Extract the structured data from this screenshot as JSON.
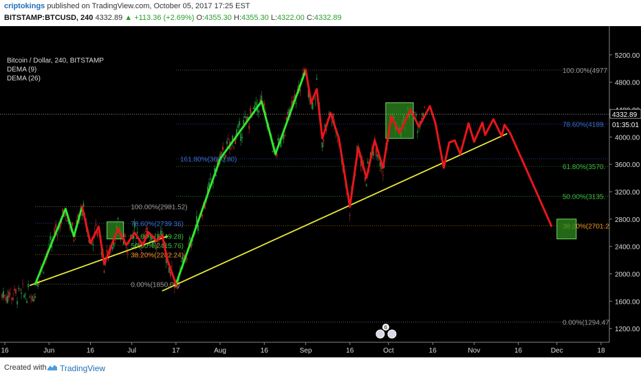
{
  "header": {
    "author": "criptokings",
    "published_text": "published on TradingView.com, October 05, 2017 17:25 EST",
    "symbol": "BITSTAMP:BTCUSD, 240",
    "last": "4332.89",
    "change": "▲ +113.36 (+2.69%)",
    "open_label": "O:",
    "open": "4355.30",
    "high_label": "H:",
    "high": "4355.30",
    "low_label": "L:",
    "low": "4322.00",
    "close_label": "C:",
    "close": "4332.89"
  },
  "legend": {
    "title": "Bitcoin / Dollar, 240, BITSTAMP",
    "ind1": "DEMA (9)",
    "ind2": "DEMA (26)"
  },
  "footer": {
    "created": "Created with",
    "brand": "TradingView"
  },
  "colors": {
    "background": "#000000",
    "green_wave": "#2ee82e",
    "red_wave": "#e8161b",
    "trendline": "#e8e83a",
    "fib_blue": "#3b6fd6",
    "fib_green": "#3fbf3f",
    "fib_orange": "#e8932a",
    "fib_gray": "#9a9a9a",
    "box_fill": "#2e8b1e"
  },
  "chart_data": {
    "type": "line",
    "title": "Bitcoin / Dollar, 240, BITSTAMP",
    "ylim": [
      1000,
      5600
    ],
    "y_ticks": [
      1200,
      1600,
      2000,
      2400,
      2800,
      3200,
      3600,
      4000,
      4400,
      4800,
      5200
    ],
    "y_tick_labels": [
      "1200.00",
      "1600.00",
      "2000.00",
      "2400.00",
      "2800.00",
      "3200.00",
      "3600.00",
      "4000.00",
      "4400.00",
      "4800.00",
      "5200.00"
    ],
    "x_tick_labels": [
      "16",
      "Jun",
      "16",
      "Jul",
      "17",
      "Aug",
      "16",
      "Sep",
      "16",
      "Oct",
      "16",
      "Nov",
      "16",
      "Dec",
      "18"
    ],
    "x_tick_days": [
      0,
      16,
      31,
      46,
      62,
      78,
      94,
      109,
      125,
      139,
      155,
      170,
      186,
      200,
      216
    ],
    "x_range_days": [
      -1,
      219
    ],
    "last_price": {
      "value": 4332.89,
      "label": "4332.89",
      "countdown": "01:35:01"
    },
    "series": [
      {
        "name": "",
        "color": "green",
        "segments": [
          [
            [
              11,
              1850
            ],
            [
              22,
              2950
            ],
            [
              25,
              2550
            ],
            [
              28,
              2981.52
            ]
          ],
          [
            [
              62,
              1850
            ],
            [
              78,
              3680.8
            ],
            [
              93,
              4520
            ],
            [
              98,
              3750
            ],
            [
              109,
              4977
            ]
          ]
        ]
      },
      {
        "name": "",
        "color": "red",
        "segments": [
          [
            [
              28,
              2981.52
            ],
            [
              31,
              2450
            ],
            [
              34,
              2690
            ],
            [
              36,
              2140
            ],
            [
              41,
              2660
            ],
            [
              44,
              2420
            ],
            [
              47,
              2600
            ],
            [
              50,
              2420
            ],
            [
              52,
              2610
            ],
            [
              55,
              2480
            ],
            [
              57,
              2560
            ],
            [
              59,
              2190
            ],
            [
              62,
              1850
            ]
          ],
          [
            [
              109,
              4977
            ],
            [
              111,
              4500
            ],
            [
              113,
              4700
            ],
            [
              115,
              3980
            ],
            [
              118,
              4350
            ],
            [
              121,
              3980
            ],
            [
              125,
              2980
            ],
            [
              128,
              3850
            ],
            [
              131,
              3400
            ],
            [
              134,
              3950
            ],
            [
              137,
              3550
            ],
            [
              140,
              4300
            ],
            [
              143,
              4060
            ],
            [
              147,
              4400
            ],
            [
              150,
              4150
            ],
            [
              154,
              4450
            ],
            [
              156,
              4200
            ],
            [
              159,
              3550
            ],
            [
              161,
              3920
            ],
            [
              163,
              3950
            ],
            [
              165,
              3750
            ],
            [
              168,
              4200
            ],
            [
              170,
              3930
            ],
            [
              173,
              4210
            ],
            [
              174,
              4030
            ],
            [
              177,
              4260
            ],
            [
              180,
              4010
            ],
            [
              181,
              4180
            ],
            [
              183,
              4060
            ],
            [
              189,
              3520
            ],
            [
              198,
              2700
            ]
          ]
        ]
      }
    ],
    "trendlines": [
      {
        "from": [
          9,
          1830
        ],
        "to": [
          59,
          2550
        ]
      },
      {
        "from": [
          57,
          1750
        ],
        "to": [
          182,
          4050
        ]
      }
    ],
    "fib_sets": [
      {
        "x_from": 11,
        "x_to": 62,
        "levels": [
          {
            "label": "100.00%(2981.52)",
            "value": 2981.52,
            "color": "gray"
          },
          {
            "label": "78.60%(2739.36)",
            "value": 2739.36,
            "color": "blue"
          },
          {
            "label": "61.80%(2549.28)",
            "value": 2549.28,
            "color": "green"
          },
          {
            "label": "50.00%(2415.76)",
            "value": 2415.76,
            "color": "green"
          },
          {
            "label": "38.20%(2282.24)",
            "value": 2282.24,
            "color": "orange"
          },
          {
            "label": "0.00%(1850.00)",
            "value": 1850,
            "color": "gray"
          }
        ]
      },
      {
        "x_from": 62,
        "x_to": 219,
        "levels": [
          {
            "label": "161.80%(3680.80)",
            "value": 3680.8,
            "color": "blue"
          },
          {
            "label": "100.00%(4977",
            "value": 4977,
            "color": "gray"
          },
          {
            "label": "78.60%(4189.",
            "value": 4189,
            "color": "blue"
          },
          {
            "label": "61.80%(3570.",
            "value": 3570,
            "color": "green"
          },
          {
            "label": "50.00%(3135.",
            "value": 3135,
            "color": "green"
          },
          {
            "label": "38.20%(2701.2",
            "value": 2701.2,
            "color": "orange"
          },
          {
            "label": "0.00%(1294.47",
            "value": 1294.47,
            "color": "gray"
          }
        ]
      }
    ],
    "boxes": [
      {
        "x": [
          37,
          43
        ],
        "y": [
          2510,
          2760
        ]
      },
      {
        "x": [
          138,
          148
        ],
        "y": [
          3980,
          4500
        ]
      },
      {
        "x": [
          200,
          207
        ],
        "y": [
          2510,
          2800
        ]
      }
    ],
    "candles_span": [
      -1,
      152
    ],
    "event_markers": [
      {
        "day": 138,
        "label": "6"
      }
    ]
  }
}
